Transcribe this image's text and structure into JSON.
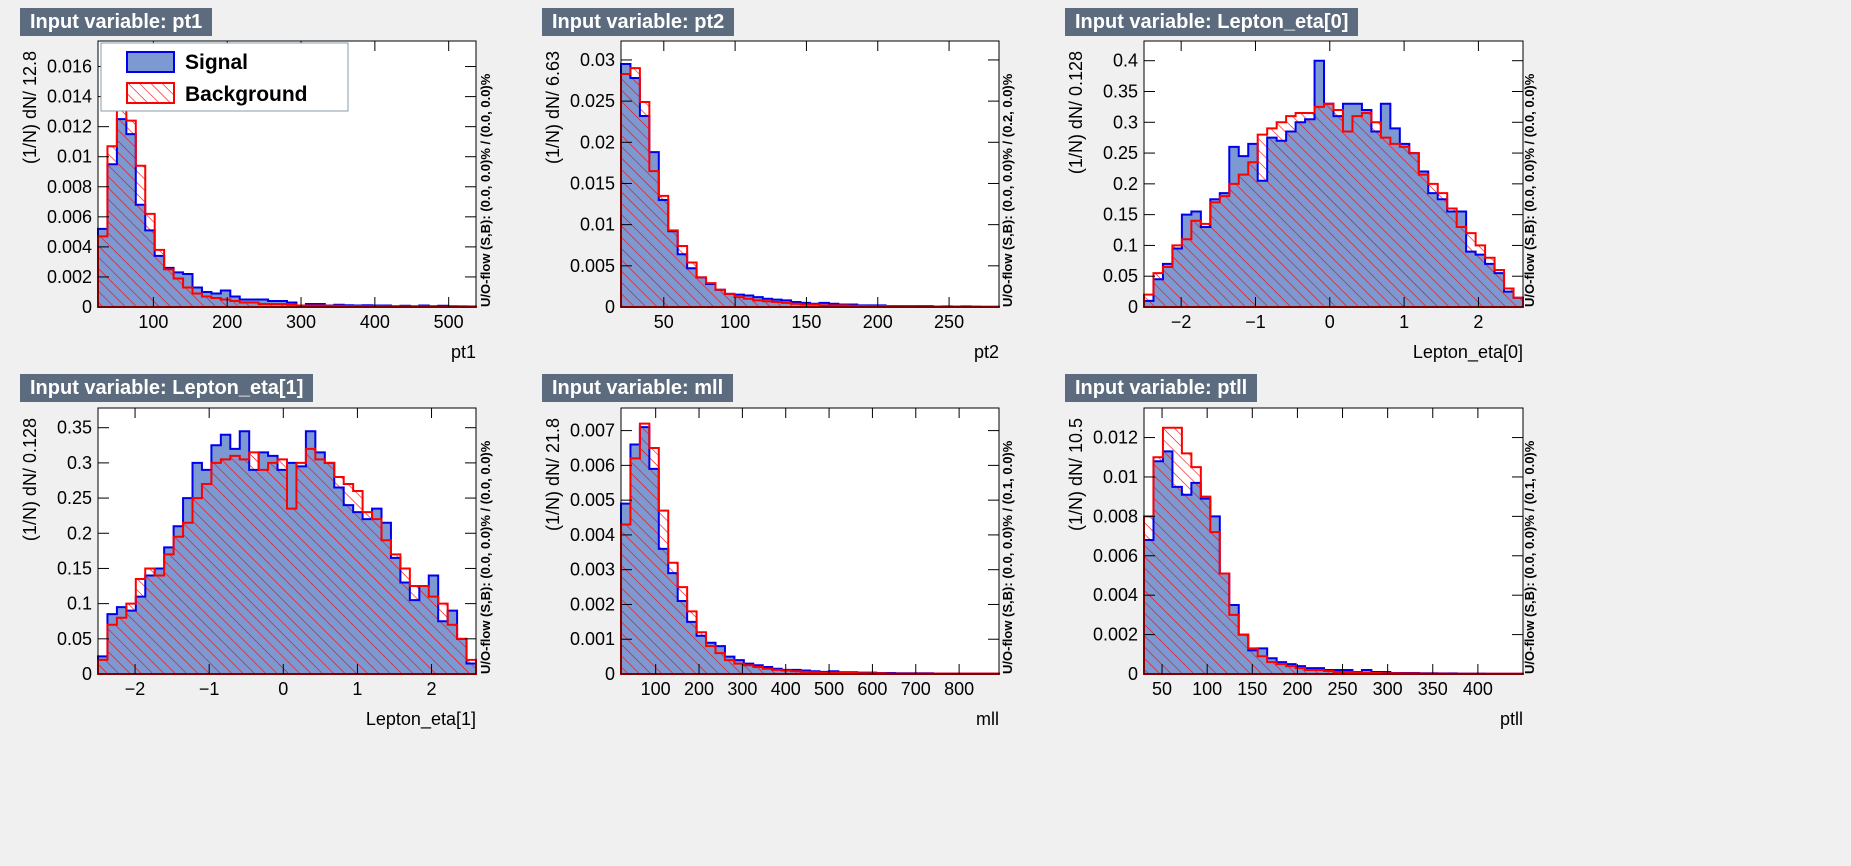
{
  "colors": {
    "signal_fill": "#7d99d1",
    "signal_line": "#0000ee",
    "background_line": "#ff0000",
    "title_bg": "#5c6b7e",
    "page_bg": "#f0f0f0"
  },
  "legend": {
    "signal": "Signal",
    "background": "Background",
    "placement": "top-left"
  },
  "chart_data": [
    {
      "type": "bar",
      "title": "Input variable: pt1",
      "xlabel": "pt1",
      "ylabel": "(1/N) dN/ 12.8",
      "overflow_label": "U/O-flow (S,B): (0.0, 0.0)% / (0.0, 0.0)%",
      "xlim": [
        25,
        537
      ],
      "ylim": [
        0,
        0.0177
      ],
      "xticks": [
        "100",
        "200",
        "300",
        "400",
        "500"
      ],
      "yticks": [
        "0",
        "0.002",
        "0.004",
        "0.006",
        "0.008",
        "0.01",
        "0.012",
        "0.014",
        "0.016"
      ],
      "series": [
        {
          "name": "Signal",
          "values": [
            0.0052,
            0.0095,
            0.0125,
            0.0115,
            0.0068,
            0.0051,
            0.0034,
            0.0026,
            0.0023,
            0.0022,
            0.0013,
            0.001,
            0.0009,
            0.0011,
            0.0007,
            0.0005,
            0.0005,
            0.0005,
            0.0004,
            0.0004,
            0.0003,
            0.0001,
            0.0002,
            0.0002,
            0.0001,
            0.00015,
            0.00012,
            0.0001,
            0.00012,
            0.0001,
            0.0001,
            5e-05,
            8e-05,
            5e-05,
            0.0001,
            5e-05,
            8e-05,
            5e-05,
            4e-05,
            3e-05
          ]
        },
        {
          "name": "Background",
          "values": [
            0.0047,
            0.0107,
            0.0136,
            0.0124,
            0.0094,
            0.0062,
            0.0038,
            0.0025,
            0.0019,
            0.0013,
            0.0009,
            0.0007,
            0.0006,
            0.0005,
            0.0004,
            0.0003,
            0.0003,
            0.0002,
            0.0002,
            0.0002,
            0.00015,
            0.0001,
            0.0001,
            0.0001,
            8e-05,
            8e-05,
            7e-05,
            6e-05,
            5e-05,
            5e-05,
            4e-05,
            4e-05,
            3e-05,
            3e-05,
            3e-05,
            2e-05,
            2e-05,
            2e-05,
            1e-05,
            1e-05
          ]
        }
      ]
    },
    {
      "type": "bar",
      "title": "Input variable: pt2",
      "xlabel": "pt2",
      "ylabel": "(1/N) dN/ 6.63",
      "overflow_label": "U/O-flow (S,B): (0.0, 0.0)% / (0.2, 0.0)%",
      "xlim": [
        20,
        285
      ],
      "ylim": [
        0,
        0.0323
      ],
      "xticks": [
        "50",
        "100",
        "150",
        "200",
        "250"
      ],
      "yticks": [
        "0",
        "0.005",
        "0.01",
        "0.015",
        "0.02",
        "0.025",
        "0.03"
      ],
      "series": [
        {
          "name": "Signal",
          "values": [
            0.0295,
            0.0278,
            0.0232,
            0.0188,
            0.013,
            0.0092,
            0.0064,
            0.0047,
            0.0036,
            0.0028,
            0.0021,
            0.0016,
            0.0015,
            0.0014,
            0.0012,
            0.001,
            0.0009,
            0.0008,
            0.0006,
            0.0005,
            0.0004,
            0.0005,
            0.0004,
            0.0003,
            0.0003,
            0.0002,
            0.0002,
            0.0002,
            0.0001,
            0.0001,
            0.0001,
            0.0001,
            0.0001,
            5e-05,
            8e-05,
            5e-05,
            8e-05,
            5e-05,
            3e-05,
            3e-05
          ]
        },
        {
          "name": "Background",
          "values": [
            0.0283,
            0.029,
            0.0249,
            0.0165,
            0.0135,
            0.0093,
            0.0074,
            0.0054,
            0.0036,
            0.0029,
            0.0021,
            0.0016,
            0.0012,
            0.001,
            0.0008,
            0.0007,
            0.0006,
            0.0005,
            0.0004,
            0.0003,
            0.0003,
            0.0002,
            0.0002,
            0.0002,
            0.00015,
            0.00012,
            0.0001,
            0.0001,
            8e-05,
            7e-05,
            6e-05,
            5e-05,
            4e-05,
            4e-05,
            3e-05,
            3e-05,
            2e-05,
            2e-05,
            2e-05,
            1e-05
          ]
        }
      ]
    },
    {
      "type": "bar",
      "title": "Input variable: Lepton_eta[0]",
      "xlabel": "Lepton_eta[0]",
      "ylabel": "(1/N) dN/ 0.128",
      "overflow_label": "U/O-flow (S,B): (0.0, 0.0)% / (0.0, 0.0)%",
      "xlim": [
        -2.5,
        2.6
      ],
      "ylim": [
        0,
        0.432
      ],
      "xticks": [
        "-2",
        "-1",
        "0",
        "1",
        "2"
      ],
      "yticks": [
        "0",
        "0.05",
        "0.1",
        "0.15",
        "0.2",
        "0.25",
        "0.3",
        "0.35",
        "0.4"
      ],
      "series": [
        {
          "name": "Signal",
          "values": [
            0.01,
            0.045,
            0.07,
            0.095,
            0.15,
            0.155,
            0.13,
            0.175,
            0.185,
            0.26,
            0.245,
            0.265,
            0.205,
            0.275,
            0.27,
            0.285,
            0.3,
            0.305,
            0.4,
            0.33,
            0.31,
            0.33,
            0.33,
            0.32,
            0.285,
            0.33,
            0.29,
            0.265,
            0.25,
            0.22,
            0.185,
            0.175,
            0.155,
            0.155,
            0.09,
            0.085,
            0.07,
            0.055,
            0.025,
            0.015
          ]
        },
        {
          "name": "Background",
          "values": [
            0.02,
            0.055,
            0.065,
            0.1,
            0.11,
            0.14,
            0.135,
            0.17,
            0.18,
            0.2,
            0.215,
            0.235,
            0.28,
            0.29,
            0.3,
            0.31,
            0.315,
            0.315,
            0.325,
            0.33,
            0.32,
            0.285,
            0.31,
            0.315,
            0.3,
            0.275,
            0.265,
            0.26,
            0.25,
            0.215,
            0.2,
            0.185,
            0.16,
            0.13,
            0.12,
            0.1,
            0.08,
            0.06,
            0.03,
            0.015
          ]
        }
      ]
    },
    {
      "type": "bar",
      "title": "Input variable: Lepton_eta[1]",
      "xlabel": "Lepton_eta[1]",
      "ylabel": "(1/N) dN/ 0.128",
      "overflow_label": "U/O-flow (S,B): (0.0, 0.0)% / (0.0, 0.0)%",
      "xlim": [
        -2.5,
        2.6
      ],
      "ylim": [
        0,
        0.378
      ],
      "xticks": [
        "-2",
        "-1",
        "0",
        "1",
        "2"
      ],
      "yticks": [
        "0",
        "0.05",
        "0.1",
        "0.15",
        "0.2",
        "0.25",
        "0.3",
        "0.35"
      ],
      "series": [
        {
          "name": "Signal",
          "values": [
            0.025,
            0.085,
            0.095,
            0.09,
            0.11,
            0.14,
            0.15,
            0.18,
            0.21,
            0.25,
            0.3,
            0.29,
            0.325,
            0.34,
            0.32,
            0.345,
            0.29,
            0.315,
            0.31,
            0.29,
            0.3,
            0.295,
            0.345,
            0.315,
            0.3,
            0.265,
            0.24,
            0.23,
            0.22,
            0.235,
            0.215,
            0.165,
            0.13,
            0.105,
            0.125,
            0.14,
            0.075,
            0.09,
            0.05,
            0.015
          ]
        },
        {
          "name": "Background",
          "values": [
            0.02,
            0.07,
            0.08,
            0.1,
            0.135,
            0.15,
            0.14,
            0.17,
            0.195,
            0.215,
            0.25,
            0.27,
            0.3,
            0.305,
            0.31,
            0.305,
            0.315,
            0.29,
            0.3,
            0.305,
            0.235,
            0.3,
            0.32,
            0.305,
            0.3,
            0.28,
            0.27,
            0.26,
            0.23,
            0.22,
            0.19,
            0.17,
            0.15,
            0.125,
            0.125,
            0.11,
            0.1,
            0.07,
            0.05,
            0.02
          ]
        }
      ]
    },
    {
      "type": "bar",
      "title": "Input variable: mll",
      "xlabel": "mll",
      "ylabel": "(1/N) dN/ 21.8",
      "overflow_label": "U/O-flow (S,B): (0.0, 0.0)% / (0.1, 0.0)%",
      "xlim": [
        20,
        892
      ],
      "ylim": [
        0,
        0.00765
      ],
      "xticks": [
        "100",
        "200",
        "300",
        "400",
        "500",
        "600",
        "700",
        "800"
      ],
      "yticks": [
        "0",
        "0.001",
        "0.002",
        "0.003",
        "0.004",
        "0.005",
        "0.006",
        "0.007"
      ],
      "series": [
        {
          "name": "Signal",
          "values": [
            0.0049,
            0.0066,
            0.0071,
            0.0059,
            0.0036,
            0.0029,
            0.0021,
            0.0015,
            0.0011,
            0.0009,
            0.0008,
            0.0005,
            0.0004,
            0.0003,
            0.00025,
            0.0002,
            0.00015,
            0.00012,
            0.00012,
            0.0001,
            8e-05,
            6e-05,
            8e-05,
            5e-05,
            5e-05,
            4e-05,
            4e-05,
            3e-05,
            3e-05,
            2e-05,
            2e-05,
            2e-05,
            2e-05,
            1e-05,
            1e-05,
            1e-05,
            1e-05,
            1e-05,
            1e-05,
            1e-05
          ]
        },
        {
          "name": "Background",
          "values": [
            0.0043,
            0.0062,
            0.0072,
            0.0065,
            0.0047,
            0.0032,
            0.0025,
            0.0018,
            0.0012,
            0.0008,
            0.0006,
            0.0004,
            0.0003,
            0.00025,
            0.0002,
            0.00015,
            0.00012,
            0.0001,
            8e-05,
            6e-05,
            5e-05,
            4e-05,
            4e-05,
            3e-05,
            3e-05,
            2e-05,
            2e-05,
            2e-05,
            1e-05,
            1e-05,
            1e-05,
            1e-05,
            1e-05,
            1e-05,
            1e-05,
            1e-05,
            1e-05,
            1e-05,
            1e-05,
            1e-05
          ]
        }
      ]
    },
    {
      "type": "bar",
      "title": "Input variable: ptll",
      "xlabel": "ptll",
      "ylabel": "(1/N) dN/ 10.5",
      "overflow_label": "U/O-flow (S,B): (0.0, 0.0)% / (0.1, 0.0)%",
      "xlim": [
        30,
        450
      ],
      "ylim": [
        0,
        0.0135
      ],
      "xticks": [
        "50",
        "100",
        "150",
        "200",
        "250",
        "300",
        "350",
        "400"
      ],
      "yticks": [
        "0",
        "0.002",
        "0.004",
        "0.006",
        "0.008",
        "0.01",
        "0.012"
      ],
      "series": [
        {
          "name": "Signal",
          "values": [
            0.0068,
            0.0108,
            0.0113,
            0.0095,
            0.0091,
            0.0097,
            0.0089,
            0.008,
            0.0051,
            0.0035,
            0.002,
            0.0012,
            0.0013,
            0.0008,
            0.0006,
            0.0005,
            0.0004,
            0.0003,
            0.0003,
            0.0002,
            0.0002,
            0.0002,
            0.0001,
            0.0002,
            0.0001,
            0.0001,
            5e-05,
            5e-05,
            5e-05,
            4e-05,
            4e-05,
            3e-05,
            3e-05,
            2e-05,
            2e-05,
            2e-05,
            1e-05,
            1e-05,
            1e-05,
            1e-05
          ]
        },
        {
          "name": "Background",
          "values": [
            0.008,
            0.011,
            0.0125,
            0.0125,
            0.0112,
            0.0105,
            0.009,
            0.0072,
            0.0051,
            0.003,
            0.002,
            0.0013,
            0.0009,
            0.0006,
            0.0005,
            0.0004,
            0.0003,
            0.0002,
            0.0002,
            0.00015,
            0.0001,
            0.0001,
            8e-05,
            6e-05,
            5e-05,
            4e-05,
            4e-05,
            3e-05,
            3e-05,
            2e-05,
            2e-05,
            2e-05,
            1e-05,
            1e-05,
            1e-05,
            1e-05,
            1e-05,
            1e-05,
            1e-05,
            1e-05
          ]
        }
      ]
    }
  ]
}
